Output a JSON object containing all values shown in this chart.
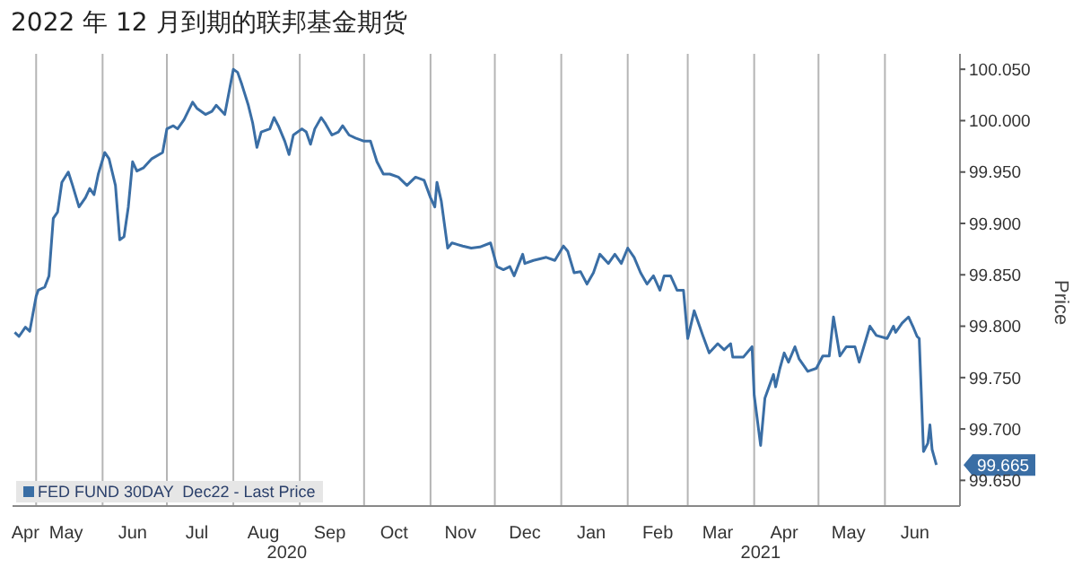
{
  "chart_data": {
    "type": "line",
    "title": "2022 年 12 月到期的联邦基金期货",
    "ylabel": "Price",
    "legend": "bottom left",
    "grid": true,
    "marker": "none",
    "line_style": "solid",
    "xlim": [
      "2020-04-20",
      "2021-07-06"
    ],
    "xticks": [
      {
        "value": "2020-04-26",
        "label": "Apr"
      },
      {
        "value": "2020-05-01",
        "label": null
      },
      {
        "value": "2020-05-15",
        "label": "May"
      },
      {
        "value": "2020-06-01",
        "label": null
      },
      {
        "value": "2020-06-15",
        "label": "Jun"
      },
      {
        "value": "2020-07-01",
        "label": null
      },
      {
        "value": "2020-07-15",
        "label": "Jul"
      },
      {
        "value": "2020-08-01",
        "label": null
      },
      {
        "value": "2020-08-15",
        "label": "Aug"
      },
      {
        "value": "2020-09-01",
        "label": null
      },
      {
        "value": "2020-09-15",
        "label": "Sep"
      },
      {
        "value": "2020-10-01",
        "label": null
      },
      {
        "value": "2020-10-15",
        "label": "Oct"
      },
      {
        "value": "2020-11-01",
        "label": null
      },
      {
        "value": "2020-11-15",
        "label": "Nov"
      },
      {
        "value": "2020-12-01",
        "label": null
      },
      {
        "value": "2020-12-15",
        "label": "Dec"
      },
      {
        "value": "2021-01-01",
        "label": null
      },
      {
        "value": "2021-01-15",
        "label": "Jan"
      },
      {
        "value": "2021-02-01",
        "label": null
      },
      {
        "value": "2021-02-15",
        "label": "Feb"
      },
      {
        "value": "2021-03-01",
        "label": null
      },
      {
        "value": "2021-03-15",
        "label": "Mar"
      },
      {
        "value": "2021-04-01",
        "label": null
      },
      {
        "value": "2021-04-15",
        "label": "Apr"
      },
      {
        "value": "2021-05-01",
        "label": null
      },
      {
        "value": "2021-05-15",
        "label": "May"
      },
      {
        "value": "2021-06-01",
        "label": null
      },
      {
        "value": "2021-06-15",
        "label": "Jun"
      }
    ],
    "ylim": [
      99.625,
      100.065
    ],
    "yticks": [
      {
        "value": 99.65,
        "label": "99.650"
      },
      {
        "value": 99.7,
        "label": "99.700"
      },
      {
        "value": 99.75,
        "label": "99.750"
      },
      {
        "value": 99.8,
        "label": "99.800"
      },
      {
        "value": 99.85,
        "label": "99.850"
      },
      {
        "value": 99.9,
        "label": "99.900"
      },
      {
        "value": 99.95,
        "label": "99.950"
      },
      {
        "value": 100,
        "label": "100.000"
      },
      {
        "value": 100.05,
        "label": "100.050"
      }
    ],
    "annotations": [
      "2020",
      "2021",
      {
        "text": "99.665",
        "x": "2021-06-25",
        "y": 99.665
      }
    ],
    "series": [
      {
        "name": "FED FUND 30DAY  Dec22 - Last Price",
        "color": "#3a6ea5",
        "x": [
          "2020-04-21",
          "2020-04-23",
          "2020-04-26",
          "2020-04-28",
          "2020-05-01",
          "2020-05-02",
          "2020-05-05",
          "2020-05-07",
          "2020-05-09",
          "2020-05-11",
          "2020-05-13",
          "2020-05-16",
          "2020-05-18",
          "2020-05-21",
          "2020-05-24",
          "2020-05-26",
          "2020-05-28",
          "2020-05-30",
          "2020-06-02",
          "2020-06-04",
          "2020-06-07",
          "2020-06-09",
          "2020-06-11",
          "2020-06-13",
          "2020-06-15",
          "2020-06-17",
          "2020-06-20",
          "2020-06-24",
          "2020-06-29",
          "2020-07-01",
          "2020-07-04",
          "2020-07-06",
          "2020-07-09",
          "2020-07-13",
          "2020-07-15",
          "2020-07-19",
          "2020-07-22",
          "2020-07-24",
          "2020-07-28",
          "2020-08-01",
          "2020-08-03",
          "2020-08-05",
          "2020-08-08",
          "2020-08-10",
          "2020-08-12",
          "2020-08-14",
          "2020-08-18",
          "2020-08-20",
          "2020-08-22",
          "2020-08-25",
          "2020-08-27",
          "2020-08-29",
          "2020-09-02",
          "2020-09-04",
          "2020-09-06",
          "2020-09-08",
          "2020-09-11",
          "2020-09-13",
          "2020-09-16",
          "2020-09-19",
          "2020-09-21",
          "2020-09-24",
          "2020-09-27",
          "2020-10-01",
          "2020-10-04",
          "2020-10-07",
          "2020-10-10",
          "2020-10-13",
          "2020-10-17",
          "2020-10-21",
          "2020-10-25",
          "2020-10-29",
          "2020-11-01",
          "2020-11-03",
          "2020-11-04",
          "2020-11-06",
          "2020-11-09",
          "2020-11-11",
          "2020-11-16",
          "2020-11-20",
          "2020-11-24",
          "2020-11-29",
          "2020-12-02",
          "2020-12-05",
          "2020-12-08",
          "2020-12-10",
          "2020-12-14",
          "2020-12-15",
          "2020-12-19",
          "2020-12-25",
          "2020-12-29",
          "2021-01-02",
          "2021-01-04",
          "2021-01-07",
          "2021-01-10",
          "2021-01-13",
          "2021-01-16",
          "2021-01-19",
          "2021-01-23",
          "2021-01-26",
          "2021-01-29",
          "2021-02-01",
          "2021-02-04",
          "2021-02-07",
          "2021-02-10",
          "2021-02-13",
          "2021-02-16",
          "2021-02-18",
          "2021-02-21",
          "2021-02-24",
          "2021-02-27",
          "2021-03-01",
          "2021-03-04",
          "2021-03-08",
          "2021-03-11",
          "2021-03-15",
          "2021-03-18",
          "2021-03-21",
          "2021-03-22",
          "2021-03-27",
          "2021-03-31",
          "2021-04-01",
          "2021-04-04",
          "2021-04-06",
          "2021-04-10",
          "2021-04-11",
          "2021-04-13",
          "2021-04-15",
          "2021-04-17",
          "2021-04-20",
          "2021-04-22",
          "2021-04-26",
          "2021-04-30",
          "2021-05-03",
          "2021-05-06",
          "2021-05-08",
          "2021-05-11",
          "2021-05-14",
          "2021-05-18",
          "2021-05-20",
          "2021-05-25",
          "2021-05-28",
          "2021-06-02",
          "2021-06-05",
          "2021-06-06",
          "2021-06-09",
          "2021-06-12",
          "2021-06-14",
          "2021-06-16",
          "2021-06-17",
          "2021-06-19",
          "2021-06-21",
          "2021-06-22",
          "2021-06-23",
          "2021-06-25"
        ],
        "values": [
          99.794,
          99.79,
          99.799,
          99.795,
          99.829,
          99.835,
          99.838,
          99.849,
          99.905,
          99.911,
          99.94,
          99.95,
          99.937,
          99.916,
          99.925,
          99.934,
          99.928,
          99.948,
          99.969,
          99.963,
          99.937,
          99.884,
          99.887,
          99.916,
          99.96,
          99.951,
          99.954,
          99.963,
          99.969,
          99.992,
          99.995,
          99.992,
          100.001,
          100.018,
          100.012,
          100.006,
          100.009,
          100.015,
          100.006,
          100.05,
          100.047,
          100.035,
          100.015,
          99.998,
          99.974,
          99.989,
          99.992,
          100.003,
          99.995,
          99.98,
          99.967,
          99.986,
          99.992,
          99.989,
          99.977,
          99.992,
          100.003,
          99.997,
          99.986,
          99.989,
          99.995,
          99.986,
          99.983,
          99.98,
          99.98,
          99.96,
          99.948,
          99.948,
          99.945,
          99.937,
          99.945,
          99.942,
          99.925,
          99.916,
          99.94,
          99.922,
          99.876,
          99.881,
          99.878,
          99.876,
          99.877,
          99.881,
          99.858,
          99.855,
          99.858,
          99.849,
          99.87,
          99.861,
          99.864,
          99.867,
          99.864,
          99.878,
          99.873,
          99.852,
          99.853,
          99.841,
          99.852,
          99.87,
          99.861,
          99.87,
          99.861,
          99.876,
          99.867,
          99.852,
          99.841,
          99.849,
          99.835,
          99.849,
          99.849,
          99.835,
          99.835,
          99.788,
          99.815,
          99.791,
          99.774,
          99.783,
          99.777,
          99.783,
          99.77,
          99.77,
          99.78,
          99.733,
          99.684,
          99.73,
          99.753,
          99.741,
          99.759,
          99.774,
          99.765,
          99.78,
          99.768,
          99.756,
          99.759,
          99.771,
          99.771,
          99.809,
          99.771,
          99.78,
          99.78,
          99.765,
          99.8,
          99.791,
          99.788,
          99.8,
          99.794,
          99.803,
          99.809,
          99.8,
          99.79,
          99.788,
          99.678,
          99.686,
          99.704,
          99.68,
          99.665
        ]
      }
    ]
  }
}
